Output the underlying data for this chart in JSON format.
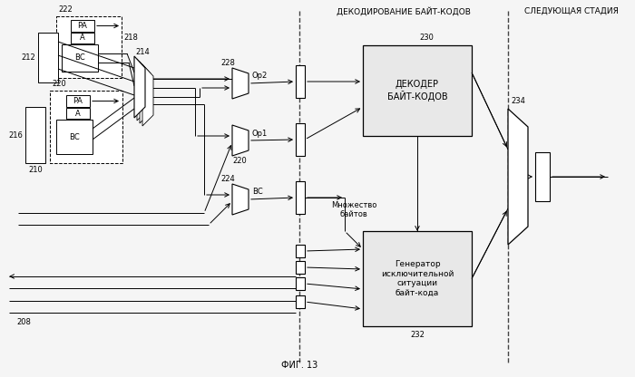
{
  "bg_color": "#f5f5f5",
  "line_color": "#000000",
  "title": "ФИГ. 13",
  "top_label1": "ДЕКОДИРОВАНИЕ БАЙТ-КОДОВ",
  "top_label2": "СЛЕДУЮЩАЯ СТАДИЯ",
  "label_222": "222",
  "label_218": "218",
  "label_212": "212",
  "label_220": "220",
  "label_216": "216",
  "label_210": "210",
  "label_214": "214",
  "label_228": "228",
  "label_224": "224",
  "label_Op2": "Op2",
  "label_Op1": "Op1",
  "label_BC": "ВС",
  "label_230": "230",
  "label_232": "232",
  "label_234": "234",
  "label_208": "208",
  "label_mult": "Множество\nбайтов",
  "label_decoder": "ДЕКОДЕР\nБАЙТ-КОДОВ",
  "label_generator": "Генератор\nисключительной\nситуации\nбайт-кода",
  "label_PA": "РА",
  "label_A": "А",
  "label_BC2": "ВС"
}
